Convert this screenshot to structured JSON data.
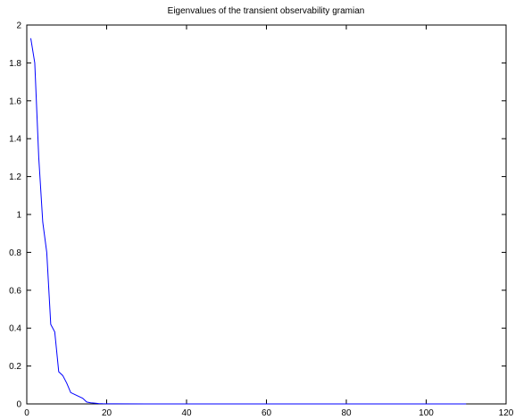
{
  "chart_data": {
    "type": "line",
    "title": "Eigenvalues of the transient observability gramian",
    "xlabel": "",
    "ylabel": "",
    "xlim": [
      0,
      120
    ],
    "ylim": [
      0,
      2
    ],
    "xticks": [
      0,
      20,
      40,
      60,
      80,
      100,
      120
    ],
    "yticks": [
      0,
      0.2,
      0.4,
      0.6,
      0.8,
      1,
      1.2,
      1.4,
      1.6,
      1.8,
      2
    ],
    "xtick_labels": [
      "0",
      "20",
      "40",
      "60",
      "80",
      "100",
      "120"
    ],
    "ytick_labels": [
      "0",
      "0.2",
      "0.4",
      "0.6",
      "0.8",
      "1",
      "1.2",
      "1.4",
      "1.6",
      "1.8",
      "2"
    ],
    "grid": false,
    "series": [
      {
        "color": "#0000ff",
        "x": [
          1,
          2,
          3,
          4,
          5,
          6,
          7,
          8,
          9,
          10,
          11,
          12,
          13,
          14,
          15,
          16,
          17,
          18,
          19,
          20,
          30,
          40,
          50,
          60,
          70,
          80,
          90,
          100,
          110
        ],
        "y": [
          1.93,
          1.8,
          1.3,
          0.96,
          0.8,
          0.42,
          0.38,
          0.17,
          0.15,
          0.11,
          0.06,
          0.05,
          0.04,
          0.03,
          0.01,
          0.006,
          0.004,
          0.002,
          0.001,
          0.0005,
          0.0001,
          0,
          0,
          0,
          0,
          0,
          0,
          0,
          0
        ]
      }
    ]
  }
}
